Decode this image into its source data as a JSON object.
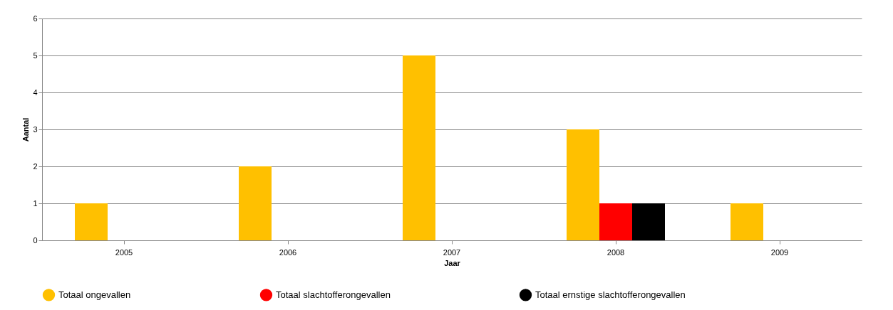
{
  "chart_data": {
    "type": "bar",
    "xlabel": "Jaar",
    "ylabel": "Aantal",
    "categories": [
      "2005",
      "2006",
      "2007",
      "2008",
      "2009"
    ],
    "series": [
      {
        "name": "Totaal ongevallen",
        "color": "#ffc000",
        "values": [
          1,
          2,
          5,
          3,
          1
        ]
      },
      {
        "name": "Totaal slachtofferongevallen",
        "color": "#ff0000",
        "values": [
          0,
          0,
          0,
          1,
          0
        ]
      },
      {
        "name": "Totaal ernstige slachtofferongevallen",
        "color": "#000000",
        "values": [
          0,
          0,
          0,
          1,
          0
        ]
      }
    ],
    "ylim": [
      0,
      6
    ],
    "yticks": [
      0,
      1,
      2,
      3,
      4,
      5,
      6
    ],
    "grid": "y",
    "legend": "bottom"
  }
}
